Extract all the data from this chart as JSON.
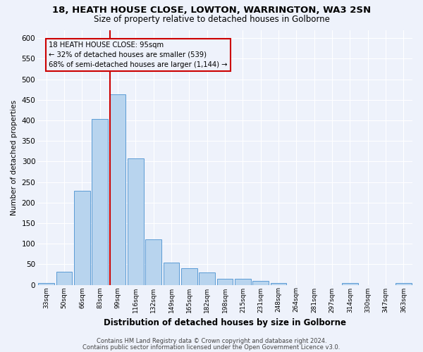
{
  "title": "18, HEATH HOUSE CLOSE, LOWTON, WARRINGTON, WA3 2SN",
  "subtitle": "Size of property relative to detached houses in Golborne",
  "xlabel": "Distribution of detached houses by size in Golborne",
  "ylabel": "Number of detached properties",
  "bar_labels": [
    "33sqm",
    "50sqm",
    "66sqm",
    "83sqm",
    "99sqm",
    "116sqm",
    "132sqm",
    "149sqm",
    "165sqm",
    "182sqm",
    "198sqm",
    "215sqm",
    "231sqm",
    "248sqm",
    "264sqm",
    "281sqm",
    "297sqm",
    "314sqm",
    "330sqm",
    "347sqm",
    "363sqm"
  ],
  "bar_values": [
    5,
    32,
    228,
    403,
    463,
    307,
    111,
    54,
    40,
    30,
    14,
    14,
    10,
    5,
    0,
    0,
    0,
    5,
    0,
    0,
    5
  ],
  "bar_color": "#b8d4ee",
  "bar_edge_color": "#5b9bd5",
  "vline_x_index": 4,
  "vline_color": "#cc0000",
  "annotation_line1": "18 HEATH HOUSE CLOSE: 95sqm",
  "annotation_line2": "← 32% of detached houses are smaller (539)",
  "annotation_line3": "68% of semi-detached houses are larger (1,144) →",
  "ylim": [
    0,
    620
  ],
  "yticks": [
    0,
    50,
    100,
    150,
    200,
    250,
    300,
    350,
    400,
    450,
    500,
    550,
    600
  ],
  "footnote1": "Contains HM Land Registry data © Crown copyright and database right 2024.",
  "footnote2": "Contains public sector information licensed under the Open Government Licence v3.0.",
  "background_color": "#eef2fb",
  "grid_color": "#ffffff"
}
